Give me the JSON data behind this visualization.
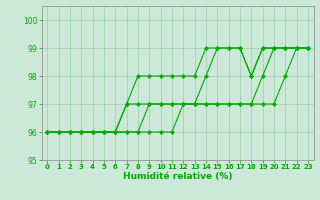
{
  "xlabel": "Humidité relative (%)",
  "bg_color": "#cce8d8",
  "grid_color": "#99ccaa",
  "line_color": "#00aa00",
  "ylim": [
    95,
    100.5
  ],
  "xlim": [
    -0.5,
    23.5
  ],
  "yticks": [
    95,
    96,
    97,
    98,
    99,
    100
  ],
  "xticks": [
    0,
    1,
    2,
    3,
    4,
    5,
    6,
    7,
    8,
    9,
    10,
    11,
    12,
    13,
    14,
    15,
    16,
    17,
    18,
    19,
    20,
    21,
    22,
    23
  ],
  "lines": [
    [
      96,
      96,
      96,
      96,
      96,
      96,
      96,
      97,
      98,
      98,
      98,
      98,
      98,
      98,
      99,
      99,
      99,
      99,
      98,
      99,
      99,
      99,
      99,
      99
    ],
    [
      96,
      96,
      96,
      96,
      96,
      96,
      96,
      97,
      97,
      97,
      97,
      97,
      97,
      97,
      98,
      99,
      99,
      99,
      98,
      99,
      99,
      99,
      99,
      99
    ],
    [
      96,
      96,
      96,
      96,
      96,
      96,
      96,
      96,
      96,
      97,
      97,
      97,
      97,
      97,
      97,
      97,
      97,
      97,
      97,
      98,
      99,
      99,
      99,
      99
    ],
    [
      96,
      96,
      96,
      96,
      96,
      96,
      96,
      96,
      96,
      96,
      96,
      96,
      97,
      97,
      97,
      97,
      97,
      97,
      97,
      97,
      97,
      98,
      99,
      99
    ]
  ]
}
